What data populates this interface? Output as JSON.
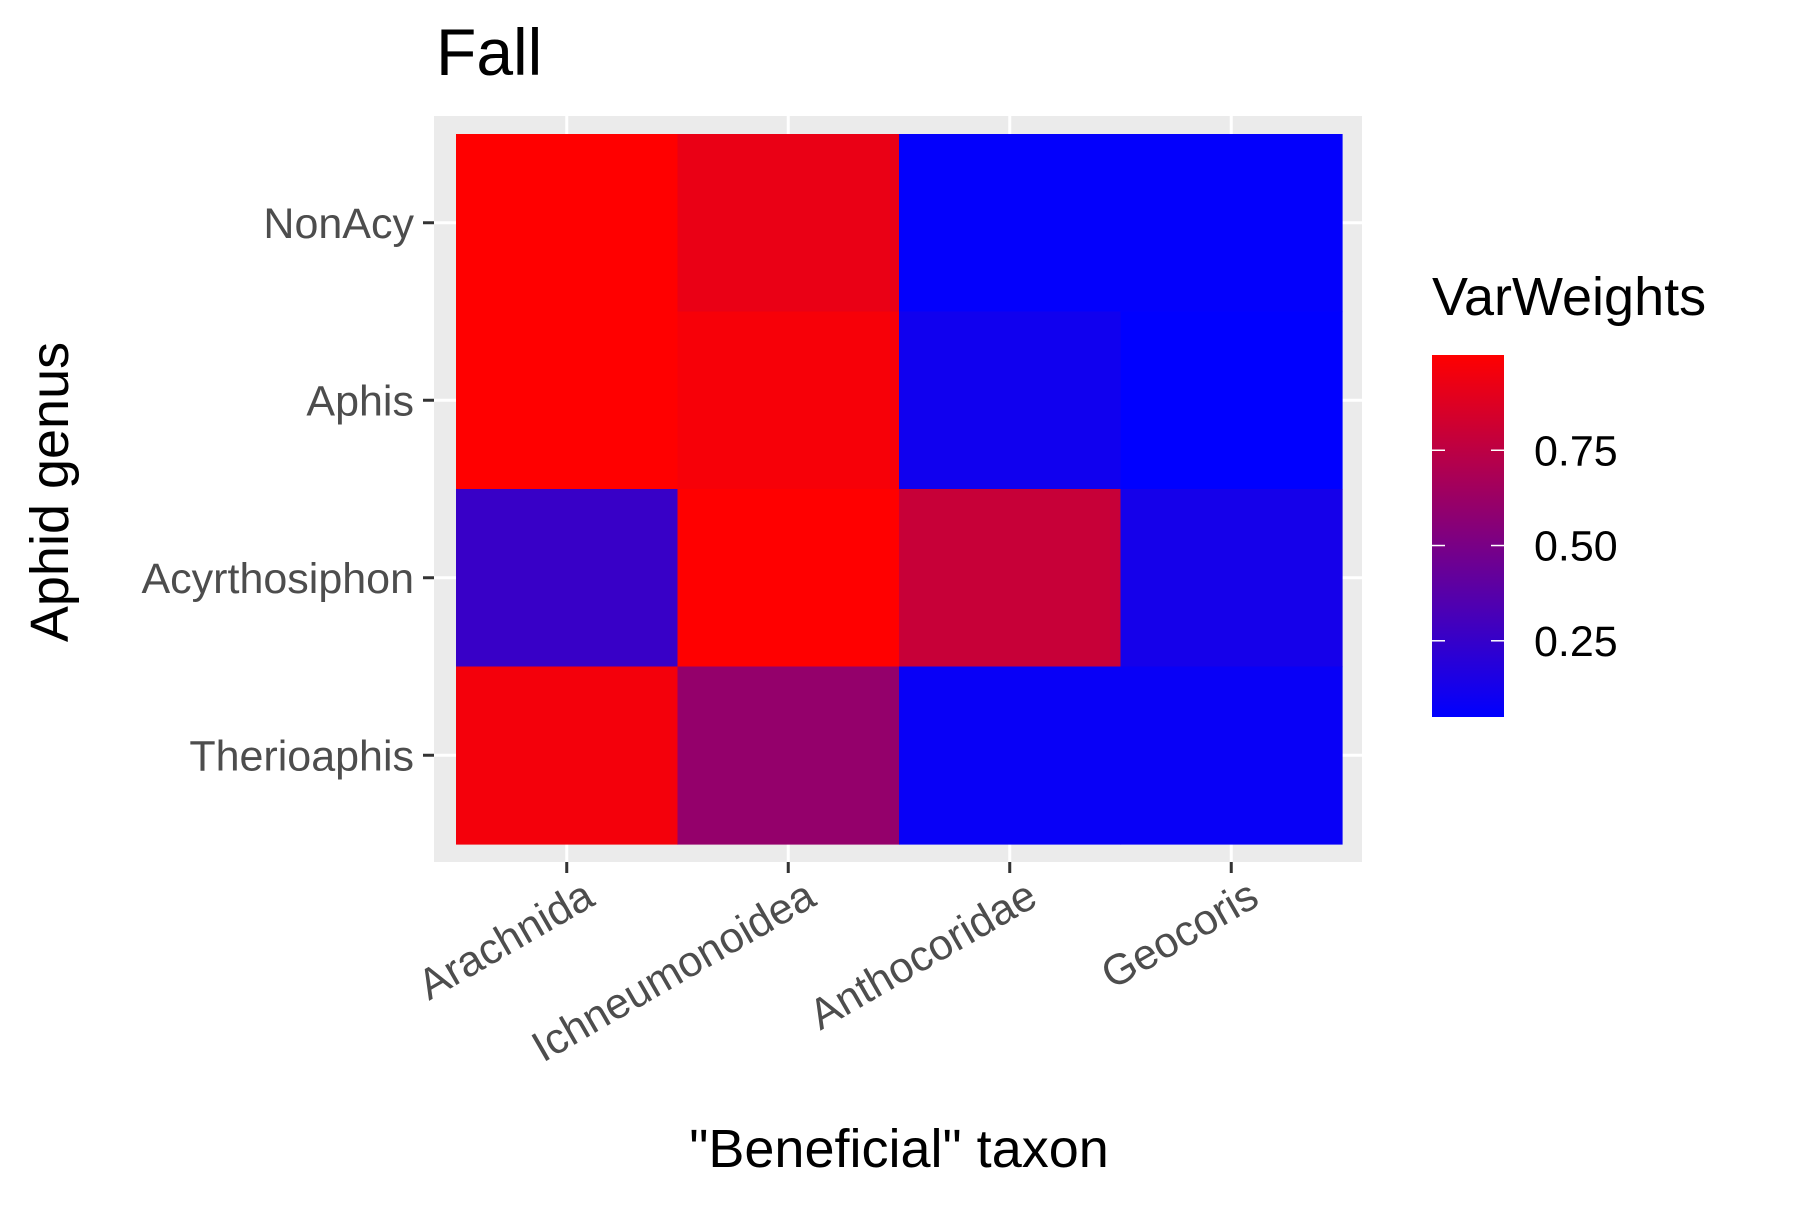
{
  "chart_data": {
    "type": "heatmap",
    "title": "Fall",
    "xlabel": "\"Beneficial\" taxon",
    "ylabel": "Aphid genus",
    "x_categories": [
      "Arachnida",
      "Ichneumonoidea",
      "Anthocoridae",
      "Geocoris"
    ],
    "y_categories": [
      "NonAcy",
      "Aphis",
      "Acyrthosiphon",
      "Therioaphis"
    ],
    "values": [
      [
        1.0,
        0.92,
        0.06,
        0.06
      ],
      [
        1.0,
        0.97,
        0.11,
        0.0
      ],
      [
        0.26,
        1.0,
        0.79,
        0.13
      ],
      [
        0.96,
        0.6,
        0.08,
        0.08
      ]
    ],
    "legend": {
      "title": "VarWeights",
      "breaks": [
        0.25,
        0.5,
        0.75
      ],
      "labels": [
        "0.25",
        "0.50",
        "0.75"
      ],
      "range": [
        0.05,
        1.0
      ],
      "low_color": "#0000ff",
      "high_color": "#ff0000",
      "position": "right"
    },
    "panel_background": "#ebebeb",
    "grid": true
  }
}
